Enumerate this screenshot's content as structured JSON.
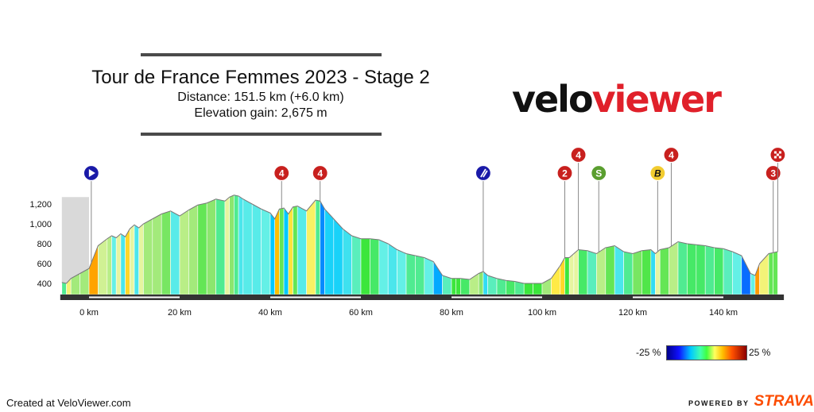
{
  "header": {
    "title": "Tour de France Femmes 2023 - Stage 2",
    "distance": "Distance: 151.5 km (+6.0 km)",
    "elevation_gain": "Elevation gain: 2,675 m"
  },
  "logo": {
    "part1": "velo",
    "part2": "viewer"
  },
  "legend": {
    "min_label": "-25 %",
    "max_label": "25 %"
  },
  "footer": {
    "created": "Created at VeloViewer.com",
    "powered": "POWERED BY",
    "strava": "STRAVA"
  },
  "markers": [
    {
      "label": "",
      "km": 0.5,
      "icon": "start-icon",
      "color": "#1a1aa8"
    },
    {
      "label": "4",
      "km": 42.5,
      "icon": "climb-category-4-icon",
      "color": "#c8201e"
    },
    {
      "label": "4",
      "km": 51,
      "icon": "climb-category-4-icon",
      "color": "#c8201e"
    },
    {
      "label": "",
      "km": 87,
      "icon": "feed-zone-icon",
      "color": "#1a1aa8"
    },
    {
      "label": "2",
      "km": 105,
      "icon": "climb-category-2-icon",
      "color": "#c8201e"
    },
    {
      "label": "4",
      "km": 108,
      "icon": "climb-category-4-icon",
      "color": "#c8201e",
      "raised": true
    },
    {
      "label": "S",
      "km": 112.5,
      "icon": "sprint-icon",
      "color": "#5a9e2f"
    },
    {
      "label": "B",
      "km": 125.5,
      "icon": "bonus-icon",
      "color": "#f2cc30"
    },
    {
      "label": "4",
      "km": 128.5,
      "icon": "climb-category-4-icon",
      "color": "#c8201e",
      "raised": true
    },
    {
      "label": "3",
      "km": 151,
      "icon": "climb-category-3-icon",
      "color": "#c8201e"
    },
    {
      "label": "",
      "km": 152,
      "icon": "finish-flag-icon",
      "color": "#c8201e",
      "raised": true
    }
  ],
  "chart_data": {
    "type": "area",
    "title": "Tour de France Femmes 2023 - Stage 2",
    "xlabel": "",
    "ylabel": "",
    "xlim": [
      -6,
      153
    ],
    "ylim": [
      300,
      1300
    ],
    "x_ticks": [
      0,
      20,
      40,
      60,
      80,
      100,
      120,
      140
    ],
    "x_tick_labels": [
      "0 km",
      "20 km",
      "40 km",
      "60 km",
      "80 km",
      "100 km",
      "120 km",
      "140 km"
    ],
    "y_ticks": [
      400,
      600,
      800,
      1000,
      1200
    ],
    "y_tick_labels": [
      "400",
      "600",
      "800",
      "1,000",
      "1,200"
    ],
    "neutral_zone_km": [
      -6,
      0
    ],
    "series": [
      {
        "x": [
          -6,
          -5,
          -4,
          -2,
          0,
          2,
          4,
          5,
          6,
          7,
          8,
          9,
          10,
          11,
          12,
          14,
          16,
          18,
          20,
          22,
          24,
          26,
          28,
          30,
          31,
          32,
          33,
          34,
          36,
          38,
          40,
          41,
          42,
          43,
          44,
          45,
          46,
          48,
          50,
          51,
          52,
          54,
          56,
          58,
          60,
          62,
          64,
          66,
          68,
          70,
          72,
          74,
          76,
          78,
          80,
          81,
          82,
          84,
          86,
          87,
          88,
          90,
          92,
          94,
          96,
          98,
          100,
          102,
          104,
          105,
          106,
          107,
          108,
          110,
          112,
          114,
          116,
          118,
          120,
          122,
          124,
          125,
          126,
          128,
          130,
          132,
          134,
          136,
          138,
          140,
          142,
          144,
          146,
          147,
          148,
          150,
          151,
          152
        ],
        "y": [
          410,
          400,
          450,
          500,
          550,
          780,
          850,
          880,
          860,
          900,
          870,
          950,
          990,
          960,
          1000,
          1050,
          1100,
          1130,
          1080,
          1140,
          1190,
          1210,
          1250,
          1230,
          1270,
          1290,
          1280,
          1250,
          1200,
          1150,
          1110,
          1050,
          1150,
          1160,
          1100,
          1170,
          1180,
          1130,
          1240,
          1230,
          1150,
          1050,
          950,
          880,
          850,
          850,
          840,
          800,
          740,
          700,
          680,
          660,
          620,
          480,
          450,
          450,
          450,
          440,
          500,
          520,
          480,
          450,
          430,
          420,
          400,
          400,
          400,
          450,
          580,
          660,
          660,
          700,
          740,
          730,
          700,
          760,
          780,
          720,
          700,
          730,
          740,
          700,
          740,
          760,
          820,
          800,
          790,
          780,
          760,
          750,
          720,
          680,
          500,
          480,
          600,
          700,
          710,
          720
        ]
      }
    ]
  }
}
